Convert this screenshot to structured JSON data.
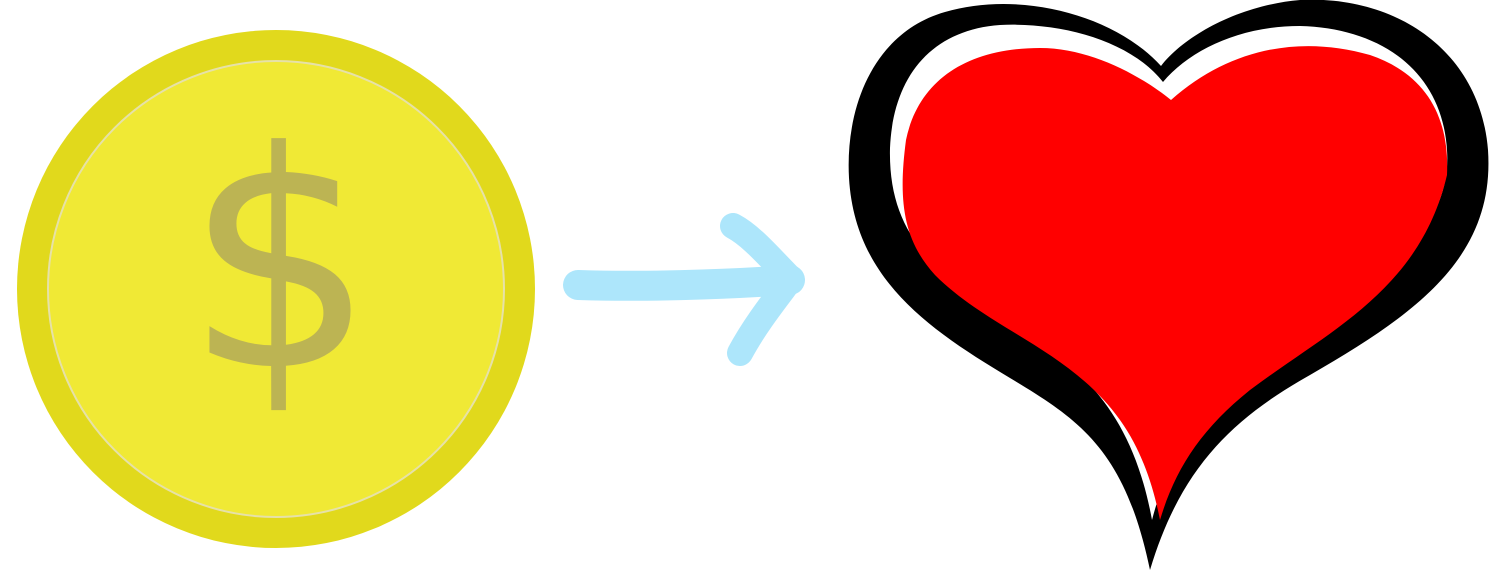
{
  "coin": {
    "symbol": "$",
    "icon": "coin-icon",
    "outer_color": "#e1d91c",
    "inner_color": "#f0e935",
    "rim_line_color": "#e6e1a8",
    "symbol_color": "#bcb453"
  },
  "arrow": {
    "icon": "arrow-right-icon",
    "color": "#ade6fb"
  },
  "heart": {
    "icon": "heart-icon",
    "fill_color": "#ff0000",
    "outline_color": "#000000"
  }
}
